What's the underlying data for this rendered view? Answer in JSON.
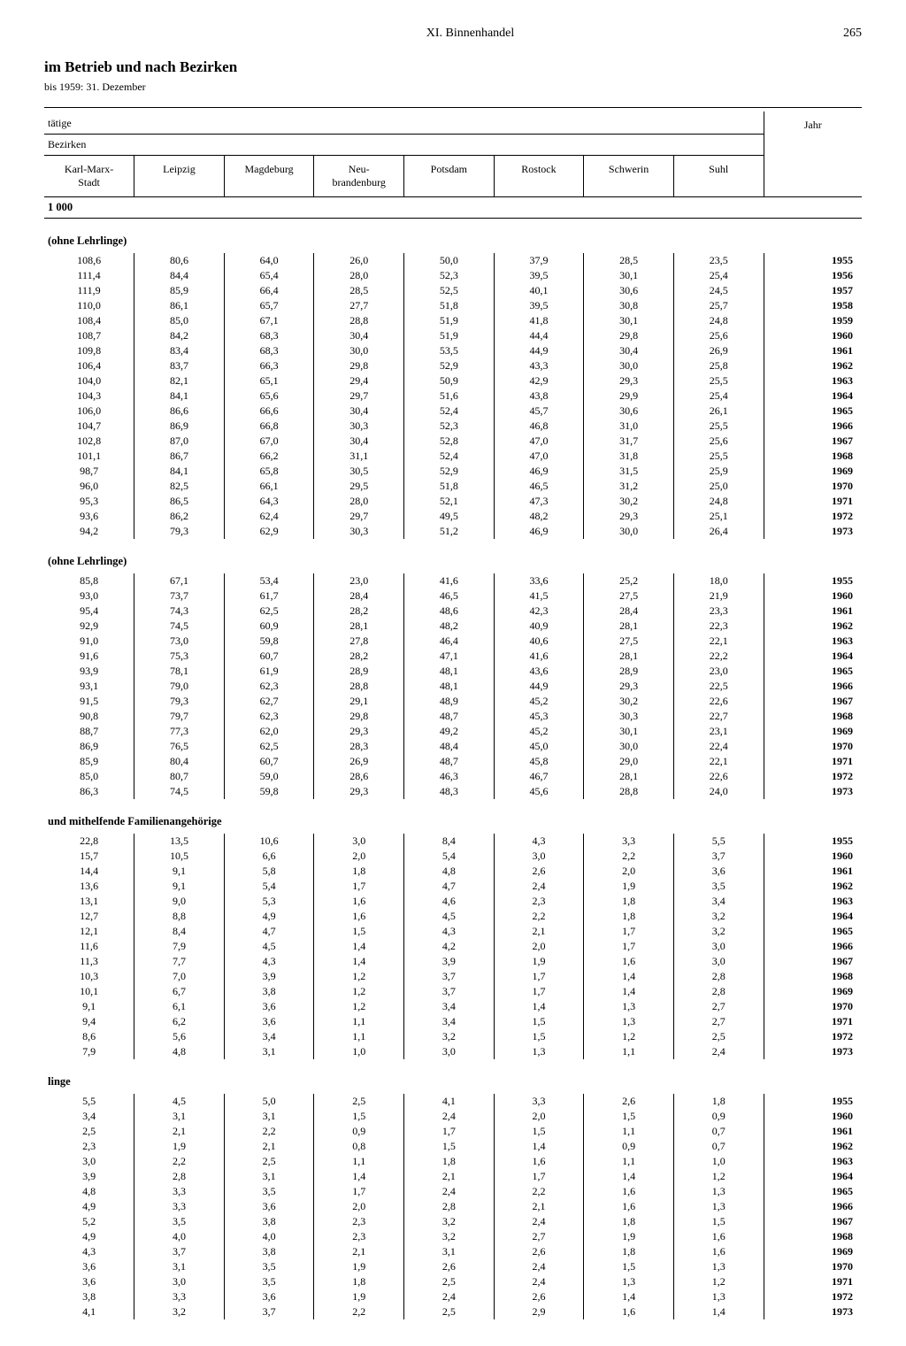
{
  "chapter": "XI. Binnenhandel",
  "page_number": "265",
  "heading": "im Betrieb und nach Bezirken",
  "subheading": "bis 1959: 31. Dezember",
  "top_label": "tätige",
  "group_label": "Bezirken",
  "unit": "1 000",
  "year_header": "Jahr",
  "columns": [
    "Karl-Marx-Stadt",
    "Leipzig",
    "Magdeburg",
    "Neu-brandenburg",
    "Potsdam",
    "Rostock",
    "Schwerin",
    "Suhl"
  ],
  "sections": [
    {
      "label": "(ohne Lehrlinge)",
      "rows": [
        {
          "v": [
            "108,6",
            "80,6",
            "64,0",
            "26,0",
            "50,0",
            "37,9",
            "28,5",
            "23,5"
          ],
          "y": "1955"
        },
        {
          "v": [
            "111,4",
            "84,4",
            "65,4",
            "28,0",
            "52,3",
            "39,5",
            "30,1",
            "25,4"
          ],
          "y": "1956"
        },
        {
          "v": [
            "111,9",
            "85,9",
            "66,4",
            "28,5",
            "52,5",
            "40,1",
            "30,6",
            "24,5"
          ],
          "y": "1957"
        },
        {
          "v": [
            "110,0",
            "86,1",
            "65,7",
            "27,7",
            "51,8",
            "39,5",
            "30,8",
            "25,7"
          ],
          "y": "1958"
        },
        {
          "v": [
            "108,4",
            "85,0",
            "67,1",
            "28,8",
            "51,9",
            "41,8",
            "30,1",
            "24,8"
          ],
          "y": "1959"
        },
        {
          "v": [
            "108,7",
            "84,2",
            "68,3",
            "30,4",
            "51,9",
            "44,4",
            "29,8",
            "25,6"
          ],
          "y": "1960"
        },
        {
          "v": [
            "109,8",
            "83,4",
            "68,3",
            "30,0",
            "53,5",
            "44,9",
            "30,4",
            "26,9"
          ],
          "y": "1961"
        },
        {
          "v": [
            "106,4",
            "83,7",
            "66,3",
            "29,8",
            "52,9",
            "43,3",
            "30,0",
            "25,8"
          ],
          "y": "1962"
        },
        {
          "v": [
            "104,0",
            "82,1",
            "65,1",
            "29,4",
            "50,9",
            "42,9",
            "29,3",
            "25,5"
          ],
          "y": "1963"
        },
        {
          "v": [
            "104,3",
            "84,1",
            "65,6",
            "29,7",
            "51,6",
            "43,8",
            "29,9",
            "25,4"
          ],
          "y": "1964"
        },
        {
          "v": [
            "106,0",
            "86,6",
            "66,6",
            "30,4",
            "52,4",
            "45,7",
            "30,6",
            "26,1"
          ],
          "y": "1965"
        },
        {
          "v": [
            "104,7",
            "86,9",
            "66,8",
            "30,3",
            "52,3",
            "46,8",
            "31,0",
            "25,5"
          ],
          "y": "1966"
        },
        {
          "v": [
            "102,8",
            "87,0",
            "67,0",
            "30,4",
            "52,8",
            "47,0",
            "31,7",
            "25,6"
          ],
          "y": "1967"
        },
        {
          "v": [
            "101,1",
            "86,7",
            "66,2",
            "31,1",
            "52,4",
            "47,0",
            "31,8",
            "25,5"
          ],
          "y": "1968"
        },
        {
          "v": [
            "98,7",
            "84,1",
            "65,8",
            "30,5",
            "52,9",
            "46,9",
            "31,5",
            "25,9"
          ],
          "y": "1969"
        },
        {
          "v": [
            "96,0",
            "82,5",
            "66,1",
            "29,5",
            "51,8",
            "46,5",
            "31,2",
            "25,0"
          ],
          "y": "1970"
        },
        {
          "v": [
            "95,3",
            "86,5",
            "64,3",
            "28,0",
            "52,1",
            "47,3",
            "30,2",
            "24,8"
          ],
          "y": "1971"
        },
        {
          "v": [
            "93,6",
            "86,2",
            "62,4",
            "29,7",
            "49,5",
            "48,2",
            "29,3",
            "25,1"
          ],
          "y": "1972"
        },
        {
          "v": [
            "94,2",
            "79,3",
            "62,9",
            "30,3",
            "51,2",
            "46,9",
            "30,0",
            "26,4"
          ],
          "y": "1973"
        }
      ]
    },
    {
      "label": "(ohne Lehrlinge)",
      "rows": [
        {
          "v": [
            "85,8",
            "67,1",
            "53,4",
            "23,0",
            "41,6",
            "33,6",
            "25,2",
            "18,0"
          ],
          "y": "1955"
        },
        {
          "v": [
            "93,0",
            "73,7",
            "61,7",
            "28,4",
            "46,5",
            "41,5",
            "27,5",
            "21,9"
          ],
          "y": "1960"
        },
        {
          "v": [
            "95,4",
            "74,3",
            "62,5",
            "28,2",
            "48,6",
            "42,3",
            "28,4",
            "23,3"
          ],
          "y": "1961"
        },
        {
          "v": [
            "92,9",
            "74,5",
            "60,9",
            "28,1",
            "48,2",
            "40,9",
            "28,1",
            "22,3"
          ],
          "y": "1962"
        },
        {
          "v": [
            "91,0",
            "73,0",
            "59,8",
            "27,8",
            "46,4",
            "40,6",
            "27,5",
            "22,1"
          ],
          "y": "1963"
        },
        {
          "v": [
            "91,6",
            "75,3",
            "60,7",
            "28,2",
            "47,1",
            "41,6",
            "28,1",
            "22,2"
          ],
          "y": "1964"
        },
        {
          "v": [
            "93,9",
            "78,1",
            "61,9",
            "28,9",
            "48,1",
            "43,6",
            "28,9",
            "23,0"
          ],
          "y": "1965"
        },
        {
          "v": [
            "93,1",
            "79,0",
            "62,3",
            "28,8",
            "48,1",
            "44,9",
            "29,3",
            "22,5"
          ],
          "y": "1966"
        },
        {
          "v": [
            "91,5",
            "79,3",
            "62,7",
            "29,1",
            "48,9",
            "45,2",
            "30,2",
            "22,6"
          ],
          "y": "1967"
        },
        {
          "v": [
            "90,8",
            "79,7",
            "62,3",
            "29,8",
            "48,7",
            "45,3",
            "30,3",
            "22,7"
          ],
          "y": "1968"
        },
        {
          "v": [
            "88,7",
            "77,3",
            "62,0",
            "29,3",
            "49,2",
            "45,2",
            "30,1",
            "23,1"
          ],
          "y": "1969"
        },
        {
          "v": [
            "86,9",
            "76,5",
            "62,5",
            "28,3",
            "48,4",
            "45,0",
            "30,0",
            "22,4"
          ],
          "y": "1970"
        },
        {
          "v": [
            "85,9",
            "80,4",
            "60,7",
            "26,9",
            "48,7",
            "45,8",
            "29,0",
            "22,1"
          ],
          "y": "1971"
        },
        {
          "v": [
            "85,0",
            "80,7",
            "59,0",
            "28,6",
            "46,3",
            "46,7",
            "28,1",
            "22,6"
          ],
          "y": "1972"
        },
        {
          "v": [
            "86,3",
            "74,5",
            "59,8",
            "29,3",
            "48,3",
            "45,6",
            "28,8",
            "24,0"
          ],
          "y": "1973"
        }
      ]
    },
    {
      "label": "und mithelfende Familienangehörige",
      "rows": [
        {
          "v": [
            "22,8",
            "13,5",
            "10,6",
            "3,0",
            "8,4",
            "4,3",
            "3,3",
            "5,5"
          ],
          "y": "1955"
        },
        {
          "v": [
            "15,7",
            "10,5",
            "6,6",
            "2,0",
            "5,4",
            "3,0",
            "2,2",
            "3,7"
          ],
          "y": "1960"
        },
        {
          "v": [
            "14,4",
            "9,1",
            "5,8",
            "1,8",
            "4,8",
            "2,6",
            "2,0",
            "3,6"
          ],
          "y": "1961"
        },
        {
          "v": [
            "13,6",
            "9,1",
            "5,4",
            "1,7",
            "4,7",
            "2,4",
            "1,9",
            "3,5"
          ],
          "y": "1962"
        },
        {
          "v": [
            "13,1",
            "9,0",
            "5,3",
            "1,6",
            "4,6",
            "2,3",
            "1,8",
            "3,4"
          ],
          "y": "1963"
        },
        {
          "v": [
            "12,7",
            "8,8",
            "4,9",
            "1,6",
            "4,5",
            "2,2",
            "1,8",
            "3,2"
          ],
          "y": "1964"
        },
        {
          "v": [
            "12,1",
            "8,4",
            "4,7",
            "1,5",
            "4,3",
            "2,1",
            "1,7",
            "3,2"
          ],
          "y": "1965"
        },
        {
          "v": [
            "11,6",
            "7,9",
            "4,5",
            "1,4",
            "4,2",
            "2,0",
            "1,7",
            "3,0"
          ],
          "y": "1966"
        },
        {
          "v": [
            "11,3",
            "7,7",
            "4,3",
            "1,4",
            "3,9",
            "1,9",
            "1,6",
            "3,0"
          ],
          "y": "1967"
        },
        {
          "v": [
            "10,3",
            "7,0",
            "3,9",
            "1,2",
            "3,7",
            "1,7",
            "1,4",
            "2,8"
          ],
          "y": "1968"
        },
        {
          "v": [
            "10,1",
            "6,7",
            "3,8",
            "1,2",
            "3,7",
            "1,7",
            "1,4",
            "2,8"
          ],
          "y": "1969"
        },
        {
          "v": [
            "9,1",
            "6,1",
            "3,6",
            "1,2",
            "3,4",
            "1,4",
            "1,3",
            "2,7"
          ],
          "y": "1970"
        },
        {
          "v": [
            "9,4",
            "6,2",
            "3,6",
            "1,1",
            "3,4",
            "1,5",
            "1,3",
            "2,7"
          ],
          "y": "1971"
        },
        {
          "v": [
            "8,6",
            "5,6",
            "3,4",
            "1,1",
            "3,2",
            "1,5",
            "1,2",
            "2,5"
          ],
          "y": "1972"
        },
        {
          "v": [
            "7,9",
            "4,8",
            "3,1",
            "1,0",
            "3,0",
            "1,3",
            "1,1",
            "2,4"
          ],
          "y": "1973"
        }
      ]
    },
    {
      "label": "linge",
      "rows": [
        {
          "v": [
            "5,5",
            "4,5",
            "5,0",
            "2,5",
            "4,1",
            "3,3",
            "2,6",
            "1,8"
          ],
          "y": "1955"
        },
        {
          "v": [
            "3,4",
            "3,1",
            "3,1",
            "1,5",
            "2,4",
            "2,0",
            "1,5",
            "0,9"
          ],
          "y": "1960"
        },
        {
          "v": [
            "2,5",
            "2,1",
            "2,2",
            "0,9",
            "1,7",
            "1,5",
            "1,1",
            "0,7"
          ],
          "y": "1961"
        },
        {
          "v": [
            "2,3",
            "1,9",
            "2,1",
            "0,8",
            "1,5",
            "1,4",
            "0,9",
            "0,7"
          ],
          "y": "1962"
        },
        {
          "v": [
            "3,0",
            "2,2",
            "2,5",
            "1,1",
            "1,8",
            "1,6",
            "1,1",
            "1,0"
          ],
          "y": "1963"
        },
        {
          "v": [
            "3,9",
            "2,8",
            "3,1",
            "1,4",
            "2,1",
            "1,7",
            "1,4",
            "1,2"
          ],
          "y": "1964"
        },
        {
          "v": [
            "4,8",
            "3,3",
            "3,5",
            "1,7",
            "2,4",
            "2,2",
            "1,6",
            "1,3"
          ],
          "y": "1965"
        },
        {
          "v": [
            "4,9",
            "3,3",
            "3,6",
            "2,0",
            "2,8",
            "2,1",
            "1,6",
            "1,3"
          ],
          "y": "1966"
        },
        {
          "v": [
            "5,2",
            "3,5",
            "3,8",
            "2,3",
            "3,2",
            "2,4",
            "1,8",
            "1,5"
          ],
          "y": "1967"
        },
        {
          "v": [
            "4,9",
            "4,0",
            "4,0",
            "2,3",
            "3,2",
            "2,7",
            "1,9",
            "1,6"
          ],
          "y": "1968"
        },
        {
          "v": [
            "4,3",
            "3,7",
            "3,8",
            "2,1",
            "3,1",
            "2,6",
            "1,8",
            "1,6"
          ],
          "y": "1969"
        },
        {
          "v": [
            "3,6",
            "3,1",
            "3,5",
            "1,9",
            "2,6",
            "2,4",
            "1,5",
            "1,3"
          ],
          "y": "1970"
        },
        {
          "v": [
            "3,6",
            "3,0",
            "3,5",
            "1,8",
            "2,5",
            "2,4",
            "1,3",
            "1,2"
          ],
          "y": "1971"
        },
        {
          "v": [
            "3,8",
            "3,3",
            "3,6",
            "1,9",
            "2,4",
            "2,6",
            "1,4",
            "1,3"
          ],
          "y": "1972"
        },
        {
          "v": [
            "4,1",
            "3,2",
            "3,7",
            "2,2",
            "2,5",
            "2,9",
            "1,6",
            "1,4"
          ],
          "y": "1973"
        }
      ]
    }
  ]
}
